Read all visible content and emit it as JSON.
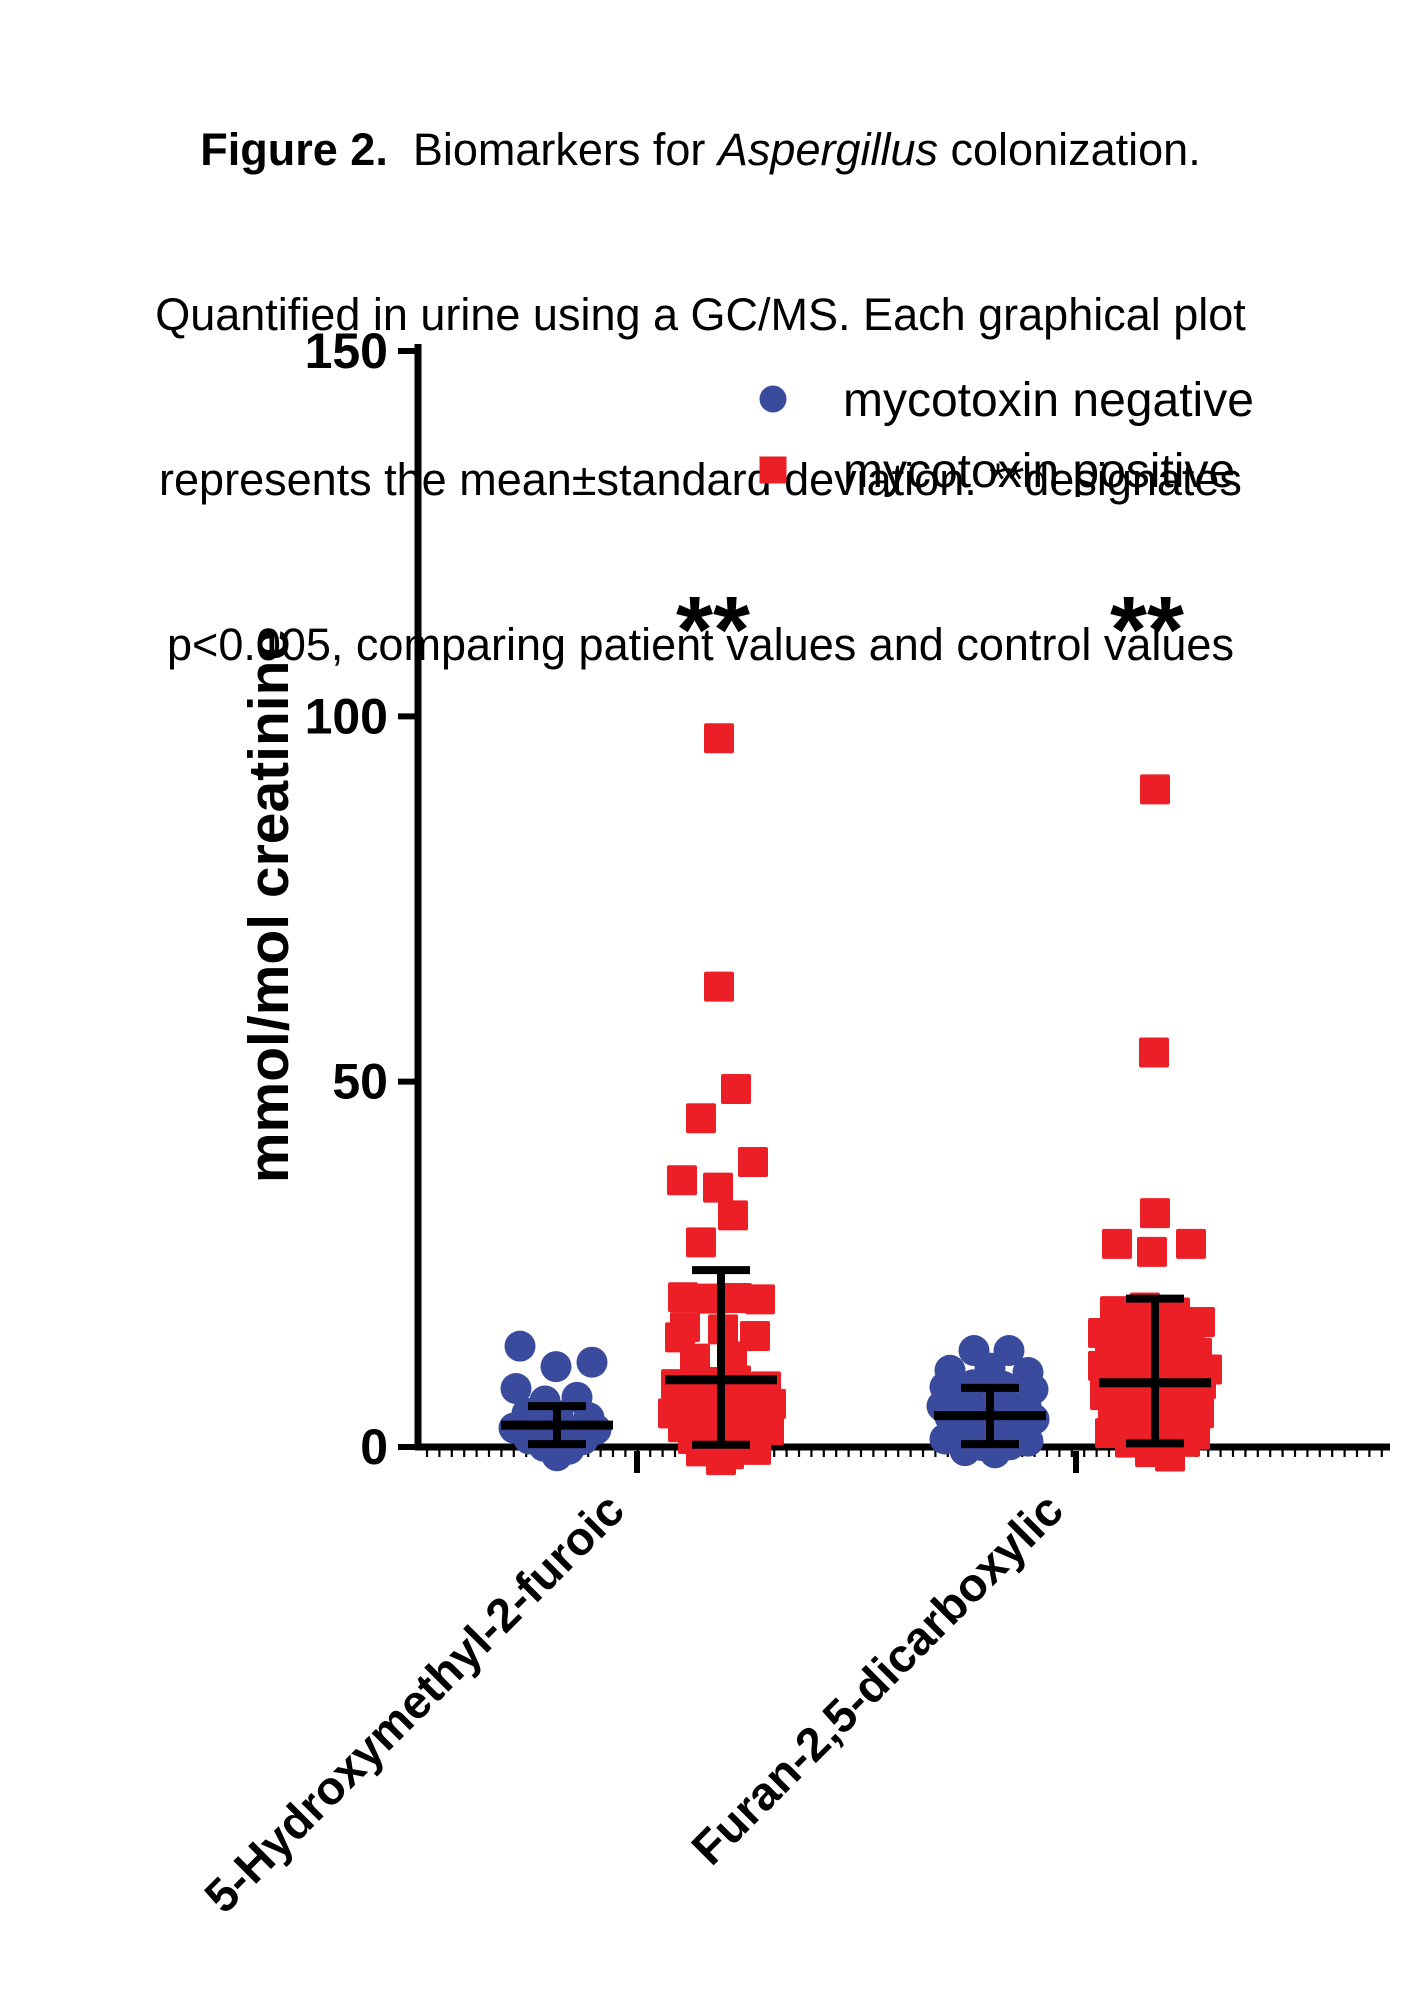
{
  "figure": {
    "caption": {
      "line1": [
        {
          "text": "Figure 2.",
          "style": "bold"
        },
        {
          "text": "  Biomarkers for ",
          "style": "regular"
        },
        {
          "text": "Aspergillus",
          "style": "italic"
        },
        {
          "text": " colonization.",
          "style": "regular"
        }
      ],
      "line2": "Quantified in urine using a GC/MS. Each graphical plot",
      "line3": "represents the mean±standard deviation. **designates",
      "line4": "p<0.005, comparing patient values and control values"
    }
  },
  "chart_data": {
    "type": "scatter",
    "title": "",
    "xlabel": "",
    "ylabel": "mmol/mol creatinine",
    "ylim": [
      0,
      150
    ],
    "yticks": [
      "0",
      "50",
      "100",
      "150"
    ],
    "grid": false,
    "legend_position": "top-right",
    "significance_note": "** designates p<0.005",
    "colors": {
      "negative": "#3A4A9D",
      "positive": "#EC1F26",
      "axis": "#000000"
    },
    "legend": [
      {
        "label": "mycotoxin negative",
        "marker": "circle",
        "color": "#3A4A9D"
      },
      {
        "label": "mycotoxin positive",
        "marker": "square",
        "color": "#EC1F26"
      }
    ],
    "groups": [
      {
        "category": "5-Hydroxymethyl-2-furoic",
        "significance": "**",
        "series": [
          {
            "name": "mycotoxin negative",
            "marker": "circle",
            "color": "#3A4A9D",
            "mean": 3.0,
            "sd_upper": 5.6,
            "sd_lower": 0.4,
            "points": [
              [
                -37,
                13.8
              ],
              [
                -1,
                11.0
              ],
              [
                35,
                11.6
              ],
              [
                -41,
                8.0
              ],
              [
                -12,
                6.3
              ],
              [
                20,
                6.8
              ],
              [
                -30,
                4.6
              ],
              [
                1,
                4.3
              ],
              [
                32,
                4.0
              ],
              [
                -43,
                2.6
              ],
              [
                -16,
                2.3
              ],
              [
                13,
                2.1
              ],
              [
                39,
                2.4
              ],
              [
                -28,
                1.1
              ],
              [
                -1,
                0.5
              ],
              [
                26,
                1.0
              ],
              [
                -13,
                0.1
              ],
              [
                12,
                -0.3
              ],
              [
                0,
                -1.2
              ]
            ]
          },
          {
            "name": "mycotoxin positive",
            "marker": "square",
            "color": "#EC1F26",
            "mean": 9.2,
            "sd_upper": 24.2,
            "sd_lower": 0.3,
            "points": [
              [
                -2,
                97.0
              ],
              [
                -2,
                63.0
              ],
              [
                15,
                49.0
              ],
              [
                -20,
                45.0
              ],
              [
                32,
                39.0
              ],
              [
                -39,
                36.5
              ],
              [
                -3,
                35.5
              ],
              [
                12,
                31.7
              ],
              [
                -20,
                28.0
              ],
              [
                -38,
                20.5
              ],
              [
                -9,
                20.3
              ],
              [
                16,
                20.4
              ],
              [
                39,
                20.2
              ],
              [
                -36,
                16.4
              ],
              [
                2,
                16.1
              ],
              [
                34,
                15.2
              ],
              [
                -41,
                15.0
              ],
              [
                -26,
                12.1
              ],
              [
                11,
                12.4
              ],
              [
                -45,
                8.6
              ],
              [
                -15,
                8.9
              ],
              [
                15,
                9.1
              ],
              [
                45,
                8.3
              ],
              [
                -35,
                6.6
              ],
              [
                -5,
                6.9
              ],
              [
                25,
                6.4
              ],
              [
                50,
                5.9
              ],
              [
                -48,
                4.6
              ],
              [
                -20,
                4.3
              ],
              [
                10,
                4.7
              ],
              [
                40,
                4.1
              ],
              [
                -38,
                2.7
              ],
              [
                -8,
                2.9
              ],
              [
                22,
                2.5
              ],
              [
                48,
                2.3
              ],
              [
                -28,
                1.1
              ],
              [
                2,
                0.9
              ],
              [
                30,
                1.3
              ],
              [
                -12,
                0.4
              ],
              [
                18,
                0.2
              ],
              [
                -20,
                -0.6
              ],
              [
                8,
                -1.0
              ],
              [
                35,
                -0.4
              ],
              [
                0,
                -1.8
              ]
            ]
          }
        ]
      },
      {
        "category": "Furan-2,5-dicarboxylic",
        "significance": "**",
        "series": [
          {
            "name": "mycotoxin negative",
            "marker": "circle",
            "color": "#3A4A9D",
            "mean": 4.3,
            "sd_upper": 8.1,
            "sd_lower": 0.4,
            "points": [
              [
                -16,
                13.2
              ],
              [
                19,
                13.2
              ],
              [
                -40,
                10.5
              ],
              [
                0,
                10.8
              ],
              [
                38,
                10.2
              ],
              [
                -45,
                8.2
              ],
              [
                -17,
                8.5
              ],
              [
                13,
                8.3
              ],
              [
                43,
                7.9
              ],
              [
                -48,
                5.6
              ],
              [
                -20,
                5.9
              ],
              [
                8,
                6.1
              ],
              [
                36,
                5.7
              ],
              [
                -40,
                4.1
              ],
              [
                -12,
                4.3
              ],
              [
                16,
                4.0
              ],
              [
                44,
                3.8
              ],
              [
                -30,
                2.3
              ],
              [
                -2,
                2.6
              ],
              [
                26,
                2.1
              ],
              [
                -45,
                1.1
              ],
              [
                -18,
                0.9
              ],
              [
                10,
                1.2
              ],
              [
                38,
                0.8
              ],
              [
                -8,
                0.2
              ],
              [
                20,
                0.3
              ],
              [
                5,
                -0.8
              ],
              [
                -25,
                -0.5
              ]
            ]
          },
          {
            "name": "mycotoxin positive",
            "marker": "square",
            "color": "#EC1F26",
            "mean": 8.8,
            "sd_upper": 20.3,
            "sd_lower": 0.5,
            "points": [
              [
                0,
                90.0
              ],
              [
                -1,
                54.0
              ],
              [
                0,
                32.0
              ],
              [
                -38,
                27.8
              ],
              [
                -3,
                26.7
              ],
              [
                36,
                27.8
              ],
              [
                -40,
                18.6
              ],
              [
                -10,
                19.1
              ],
              [
                20,
                18.4
              ],
              [
                45,
                17.1
              ],
              [
                -52,
                15.6
              ],
              [
                -22,
                16.1
              ],
              [
                8,
                15.9
              ],
              [
                35,
                15.3
              ],
              [
                -45,
                13.1
              ],
              [
                -15,
                13.6
              ],
              [
                15,
                13.3
              ],
              [
                42,
                12.9
              ],
              [
                -52,
                11.1
              ],
              [
                -25,
                11.6
              ],
              [
                5,
                11.3
              ],
              [
                32,
                10.9
              ],
              [
                52,
                10.6
              ],
              [
                -40,
                9.1
              ],
              [
                -10,
                9.4
              ],
              [
                20,
                8.9
              ],
              [
                46,
                8.6
              ],
              [
                -50,
                7.1
              ],
              [
                -20,
                7.3
              ],
              [
                10,
                6.9
              ],
              [
                38,
                6.6
              ],
              [
                -42,
                5.1
              ],
              [
                -12,
                5.3
              ],
              [
                18,
                4.9
              ],
              [
                44,
                4.6
              ],
              [
                -30,
                3.1
              ],
              [
                0,
                3.3
              ],
              [
                28,
                2.9
              ],
              [
                -45,
                1.9
              ],
              [
                -15,
                1.6
              ],
              [
                15,
                1.3
              ],
              [
                40,
                1.7
              ],
              [
                -25,
                0.6
              ],
              [
                5,
                0.4
              ],
              [
                30,
                0.7
              ],
              [
                -5,
                -0.7
              ],
              [
                15,
                -1.3
              ]
            ]
          }
        ]
      }
    ]
  }
}
